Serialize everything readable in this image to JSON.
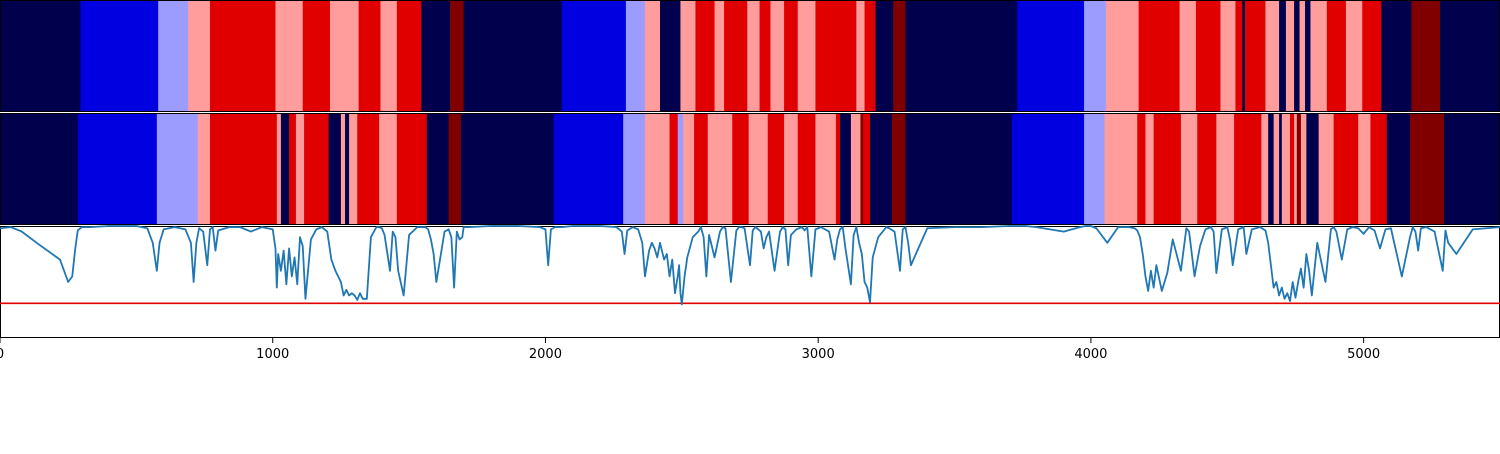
{
  "chart_data": {
    "type": "heatmap",
    "title": "",
    "xlabel": "",
    "ylabel": "",
    "xlim": [
      0,
      5500
    ],
    "x_ticks": [
      0,
      1000,
      2000,
      3000,
      4000,
      5000
    ],
    "colors": {
      "0": "#00004c",
      "1": "#0000e0",
      "2": "#9c9cff",
      "3": "#ff9c9c",
      "4": "#e00000",
      "5": "#800000"
    },
    "state_rows": [
      {
        "segments": [
          [
            0,
            0
          ],
          [
            295,
            1
          ],
          [
            580,
            2
          ],
          [
            690,
            3
          ],
          [
            770,
            4
          ],
          [
            1010,
            3
          ],
          [
            1110,
            4
          ],
          [
            1210,
            3
          ],
          [
            1315,
            4
          ],
          [
            1395,
            3
          ],
          [
            1455,
            4
          ],
          [
            1545,
            0
          ],
          [
            1650,
            5
          ],
          [
            1700,
            0
          ],
          [
            2060,
            1
          ],
          [
            2295,
            2
          ],
          [
            2365,
            3
          ],
          [
            2420,
            0
          ],
          [
            2495,
            3
          ],
          [
            2550,
            4
          ],
          [
            2620,
            3
          ],
          [
            2655,
            4
          ],
          [
            2740,
            3
          ],
          [
            2785,
            4
          ],
          [
            2825,
            3
          ],
          [
            2875,
            4
          ],
          [
            2925,
            3
          ],
          [
            2990,
            4
          ],
          [
            3140,
            3
          ],
          [
            3170,
            4
          ],
          [
            3210,
            0
          ],
          [
            3275,
            5
          ],
          [
            3320,
            0
          ],
          [
            3730,
            1
          ],
          [
            3975,
            2
          ],
          [
            4055,
            3
          ],
          [
            4175,
            4
          ],
          [
            4325,
            3
          ],
          [
            4385,
            4
          ],
          [
            4475,
            3
          ],
          [
            4530,
            4
          ],
          [
            4555,
            0
          ],
          [
            4565,
            4
          ],
          [
            4640,
            3
          ],
          [
            4690,
            0
          ],
          [
            4715,
            3
          ],
          [
            4745,
            0
          ],
          [
            4765,
            3
          ],
          [
            4785,
            0
          ],
          [
            4805,
            3
          ],
          [
            4865,
            4
          ],
          [
            4935,
            3
          ],
          [
            4995,
            4
          ],
          [
            5065,
            0
          ],
          [
            5175,
            5
          ],
          [
            5280,
            0
          ]
        ]
      },
      {
        "segments": [
          [
            0,
            0
          ],
          [
            285,
            1
          ],
          [
            575,
            2
          ],
          [
            725,
            3
          ],
          [
            770,
            4
          ],
          [
            1015,
            3
          ],
          [
            1030,
            0
          ],
          [
            1060,
            4
          ],
          [
            1085,
            3
          ],
          [
            1115,
            4
          ],
          [
            1205,
            0
          ],
          [
            1250,
            3
          ],
          [
            1265,
            0
          ],
          [
            1280,
            3
          ],
          [
            1310,
            4
          ],
          [
            1390,
            3
          ],
          [
            1455,
            4
          ],
          [
            1565,
            0
          ],
          [
            1645,
            5
          ],
          [
            1690,
            0
          ],
          [
            2030,
            1
          ],
          [
            2285,
            2
          ],
          [
            2365,
            3
          ],
          [
            2455,
            4
          ],
          [
            2485,
            2
          ],
          [
            2505,
            3
          ],
          [
            2545,
            4
          ],
          [
            2595,
            3
          ],
          [
            2685,
            4
          ],
          [
            2745,
            3
          ],
          [
            2815,
            4
          ],
          [
            2875,
            3
          ],
          [
            2925,
            4
          ],
          [
            2990,
            3
          ],
          [
            3065,
            4
          ],
          [
            3080,
            0
          ],
          [
            3120,
            3
          ],
          [
            3155,
            5
          ],
          [
            3165,
            4
          ],
          [
            3190,
            0
          ],
          [
            3270,
            5
          ],
          [
            3320,
            0
          ],
          [
            3710,
            1
          ],
          [
            3975,
            2
          ],
          [
            4050,
            3
          ],
          [
            4170,
            4
          ],
          [
            4200,
            3
          ],
          [
            4230,
            4
          ],
          [
            4330,
            3
          ],
          [
            4390,
            4
          ],
          [
            4460,
            3
          ],
          [
            4525,
            4
          ],
          [
            4625,
            3
          ],
          [
            4650,
            0
          ],
          [
            4670,
            3
          ],
          [
            4690,
            0
          ],
          [
            4700,
            3
          ],
          [
            4730,
            4
          ],
          [
            4745,
            3
          ],
          [
            4755,
            5
          ],
          [
            4770,
            3
          ],
          [
            4790,
            0
          ],
          [
            4835,
            3
          ],
          [
            4890,
            4
          ],
          [
            4980,
            3
          ],
          [
            5025,
            4
          ],
          [
            5085,
            0
          ],
          [
            5170,
            5
          ],
          [
            5295,
            0
          ]
        ]
      }
    ],
    "signal_series": {
      "color": "#1f77b4",
      "ylim": [
        0,
        1
      ],
      "x": [
        0,
        40,
        80,
        140,
        220,
        250,
        265,
        275,
        285,
        300,
        330,
        400,
        500,
        540,
        560,
        575,
        585,
        600,
        640,
        680,
        700,
        710,
        720,
        730,
        745,
        760,
        770,
        780,
        790,
        800,
        840,
        880,
        900,
        920,
        960,
        1000,
        1010,
        1015,
        1020,
        1030,
        1040,
        1050,
        1060,
        1070,
        1080,
        1090,
        1100,
        1110,
        1120,
        1140,
        1160,
        1180,
        1200,
        1215,
        1230,
        1240,
        1250,
        1260,
        1270,
        1280,
        1290,
        1300,
        1310,
        1320,
        1330,
        1345,
        1360,
        1380,
        1390,
        1400,
        1410,
        1430,
        1440,
        1450,
        1460,
        1480,
        1500,
        1530,
        1560,
        1570,
        1580,
        1590,
        1600,
        1630,
        1645,
        1655,
        1665,
        1675,
        1685,
        1695,
        1700,
        1720,
        1800,
        1900,
        1980,
        2000,
        2010,
        2020,
        2035,
        2060,
        2100,
        2200,
        2260,
        2280,
        2290,
        2300,
        2320,
        2340,
        2355,
        2365,
        2380,
        2390,
        2400,
        2410,
        2420,
        2435,
        2445,
        2455,
        2465,
        2475,
        2485,
        2490,
        2495,
        2500,
        2510,
        2520,
        2540,
        2560,
        2570,
        2580,
        2590,
        2600,
        2620,
        2640,
        2650,
        2660,
        2680,
        2700,
        2710,
        2720,
        2730,
        2750,
        2760,
        2770,
        2790,
        2800,
        2810,
        2820,
        2840,
        2860,
        2870,
        2880,
        2890,
        2900,
        2920,
        2940,
        2950,
        2960,
        2975,
        2990,
        3010,
        3040,
        3060,
        3070,
        3080,
        3090,
        3100,
        3120,
        3130,
        3140,
        3150,
        3160,
        3170,
        3180,
        3190,
        3200,
        3220,
        3240,
        3250,
        3260,
        3280,
        3300,
        3310,
        3320,
        3330,
        3340,
        3400,
        3500,
        3600,
        3700,
        3730,
        3760,
        3800,
        3900,
        3960,
        3980,
        4000,
        4020,
        4060,
        4100,
        4140,
        4160,
        4170,
        4180,
        4190,
        4200,
        4210,
        4220,
        4230,
        4240,
        4260,
        4280,
        4300,
        4330,
        4350,
        4360,
        4380,
        4400,
        4420,
        4440,
        4450,
        4460,
        4480,
        4500,
        4510,
        4520,
        4540,
        4560,
        4570,
        4590,
        4620,
        4640,
        4650,
        4660,
        4670,
        4680,
        4690,
        4700,
        4710,
        4720,
        4730,
        4740,
        4750,
        4760,
        4770,
        4780,
        4790,
        4800,
        4810,
        4830,
        4860,
        4880,
        4890,
        4900,
        4920,
        4940,
        4960,
        4980,
        5000,
        5020,
        5040,
        5060,
        5080,
        5100,
        5140,
        5170,
        5180,
        5190,
        5200,
        5210,
        5230,
        5260,
        5290,
        5300,
        5310,
        5340,
        5400,
        5500
      ],
      "y": [
        0.98,
        0.99,
        0.95,
        0.84,
        0.7,
        0.5,
        0.55,
        0.78,
        0.96,
        0.99,
        0.99,
        1.0,
        1.0,
        0.98,
        0.85,
        0.6,
        0.85,
        0.97,
        0.99,
        0.97,
        0.85,
        0.5,
        0.85,
        0.98,
        0.95,
        0.65,
        0.97,
        0.99,
        0.78,
        0.96,
        0.99,
        0.99,
        0.97,
        0.95,
        0.99,
        0.97,
        0.8,
        0.45,
        0.75,
        0.6,
        0.78,
        0.48,
        0.8,
        0.55,
        0.72,
        0.48,
        0.9,
        0.82,
        0.35,
        0.88,
        0.97,
        0.99,
        0.95,
        0.7,
        0.6,
        0.55,
        0.5,
        0.38,
        0.43,
        0.38,
        0.4,
        0.38,
        0.34,
        0.4,
        0.35,
        0.35,
        0.9,
        0.99,
        0.99,
        0.98,
        0.92,
        0.6,
        0.95,
        0.9,
        0.6,
        0.38,
        0.92,
        0.99,
        0.99,
        0.97,
        0.88,
        0.75,
        0.5,
        0.95,
        0.97,
        0.9,
        0.45,
        0.95,
        0.88,
        0.9,
        0.99,
        0.99,
        1.0,
        1.0,
        0.99,
        0.97,
        0.65,
        0.97,
        0.99,
        0.99,
        1.0,
        1.0,
        0.99,
        0.95,
        0.75,
        0.96,
        0.99,
        0.97,
        0.85,
        0.55,
        0.78,
        0.85,
        0.8,
        0.72,
        0.85,
        0.7,
        0.75,
        0.55,
        0.7,
        0.4,
        0.55,
        0.65,
        0.4,
        0.3,
        0.55,
        0.72,
        0.9,
        0.95,
        0.99,
        0.9,
        0.55,
        0.92,
        0.72,
        0.95,
        0.99,
        0.98,
        0.5,
        0.96,
        0.99,
        0.99,
        0.98,
        0.65,
        0.96,
        0.99,
        0.95,
        0.8,
        0.9,
        0.95,
        0.6,
        0.95,
        0.99,
        0.97,
        0.65,
        0.92,
        0.97,
        0.99,
        0.96,
        0.99,
        0.55,
        0.97,
        0.99,
        0.95,
        0.7,
        0.88,
        0.97,
        0.99,
        0.8,
        0.48,
        0.92,
        0.99,
        0.85,
        0.75,
        0.5,
        0.45,
        0.32,
        0.72,
        0.9,
        0.96,
        0.99,
        0.98,
        0.95,
        0.6,
        0.97,
        0.99,
        0.85,
        0.65,
        0.98,
        0.99,
        0.99,
        1.0,
        1.0,
        1.0,
        0.99,
        0.95,
        0.99,
        1.0,
        1.0,
        0.98,
        0.85,
        0.99,
        0.99,
        0.98,
        0.96,
        0.9,
        0.75,
        0.55,
        0.42,
        0.6,
        0.45,
        0.65,
        0.42,
        0.58,
        0.88,
        0.6,
        0.98,
        0.95,
        0.55,
        0.82,
        0.97,
        0.99,
        0.95,
        0.58,
        0.97,
        0.99,
        0.88,
        0.65,
        0.97,
        0.99,
        0.75,
        0.97,
        0.99,
        0.96,
        0.85,
        0.65,
        0.45,
        0.5,
        0.38,
        0.45,
        0.35,
        0.4,
        0.33,
        0.5,
        0.36,
        0.5,
        0.62,
        0.45,
        0.75,
        0.6,
        0.38,
        0.85,
        0.5,
        0.97,
        0.99,
        0.95,
        0.7,
        0.97,
        0.99,
        0.98,
        0.93,
        0.99,
        0.96,
        0.8,
        0.97,
        0.98,
        0.55,
        0.9,
        0.99,
        0.95,
        0.78,
        0.98,
        0.99,
        0.95,
        0.6,
        0.96,
        0.85,
        0.75,
        0.97,
        0.99,
        0.92,
        0.5,
        0.97,
        0.99,
        0.99,
        0.99
      ]
    },
    "threshold_line": {
      "y": 0.31,
      "color": "#e00000"
    },
    "grid": false
  }
}
